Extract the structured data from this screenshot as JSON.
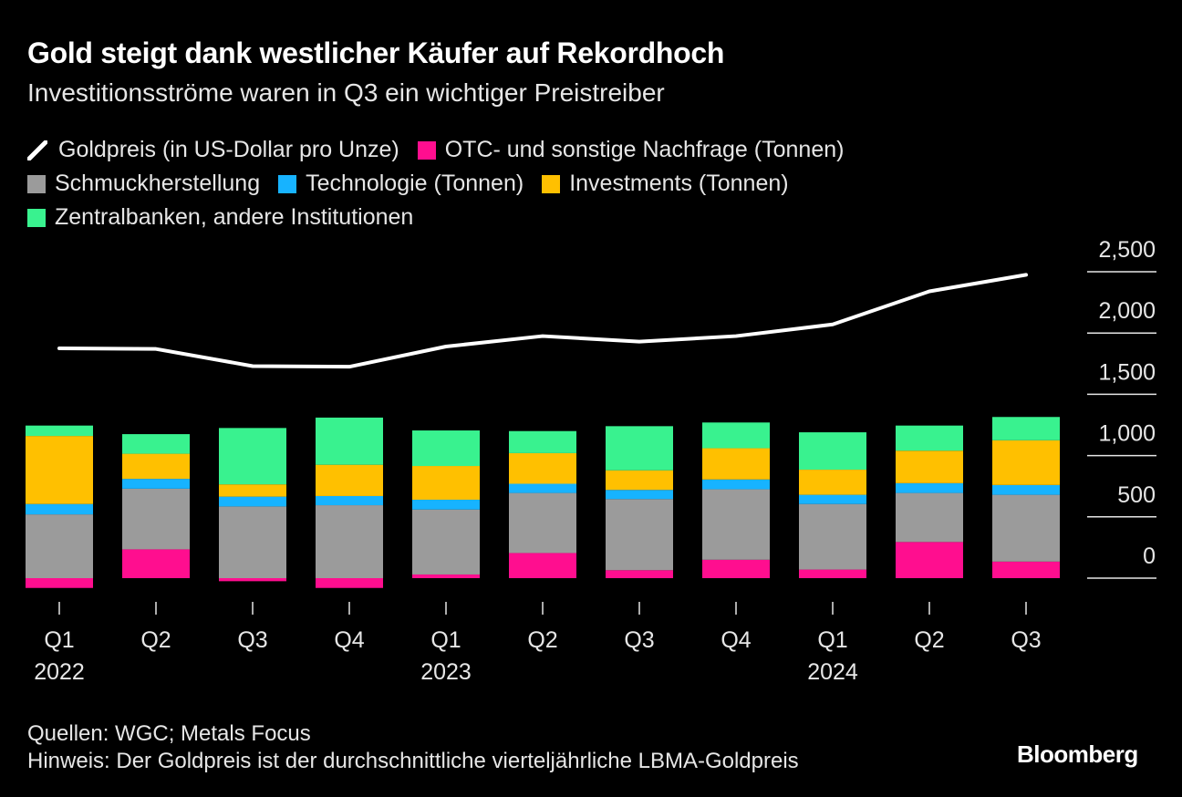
{
  "title": "Gold steigt dank westlicher Käufer auf Rekordhoch",
  "subtitle": "Investitionsströme waren in Q3 ein wichtiger Preistreiber",
  "legend": [
    {
      "key": "goldpreis",
      "label": "Goldpreis (in US-Dollar pro Unze)",
      "color": "#ffffff",
      "shape": "line"
    },
    {
      "key": "otc",
      "label": "OTC- und sonstige Nachfrage (Tonnen)",
      "color": "#ff0e8f",
      "shape": "square"
    },
    {
      "key": "schmuck",
      "label": "Schmuckherstellung",
      "color": "#9b9b9b",
      "shape": "square"
    },
    {
      "key": "technologie",
      "label": "Technologie (Tonnen)",
      "color": "#17b3ff",
      "shape": "square"
    },
    {
      "key": "investments",
      "label": "Investments (Tonnen)",
      "color": "#ffc000",
      "shape": "square"
    },
    {
      "key": "zentralbanken",
      "label": "Zentralbanken, andere Institutionen",
      "color": "#39f28f",
      "shape": "square"
    }
  ],
  "sources": "Quellen: WGC; Metals Focus",
  "note": "Hinweis: Der Goldpreis ist der durchschnittliche vierteljährliche LBMA-Goldpreis",
  "brand": "Bloomberg",
  "chart_data": {
    "type": "stacked-bar-with-line",
    "categories": [
      "Q1",
      "Q2",
      "Q3",
      "Q4",
      "Q1",
      "Q2",
      "Q3",
      "Q4",
      "Q1",
      "Q2",
      "Q3"
    ],
    "year_labels": [
      {
        "index": 0,
        "label": "2022"
      },
      {
        "index": 4,
        "label": "2023"
      },
      {
        "index": 8,
        "label": "2024"
      }
    ],
    "yaxis": {
      "ticks": [
        "0",
        "500",
        "1,000",
        "1,500",
        "2,000",
        "2,500"
      ],
      "tick_values": [
        0,
        500,
        1000,
        1500,
        2000,
        2500
      ],
      "ylim": [
        -120,
        2500
      ],
      "position": "right",
      "grid": false
    },
    "series": [
      {
        "key": "otc",
        "name": "OTC- und sonstige Nachfrage (Tonnen)",
        "color": "#ff0e8f",
        "values": [
          -80,
          235,
          -25,
          -80,
          30,
          205,
          65,
          150,
          70,
          295,
          135
        ]
      },
      {
        "key": "schmuck",
        "name": "Schmuckherstellung",
        "color": "#9b9b9b",
        "values": [
          520,
          495,
          585,
          595,
          530,
          490,
          580,
          575,
          535,
          400,
          545
        ]
      },
      {
        "key": "technologie",
        "name": "Technologie (Tonnen)",
        "color": "#17b3ff",
        "values": [
          85,
          80,
          80,
          75,
          80,
          75,
          75,
          80,
          75,
          80,
          80
        ]
      },
      {
        "key": "investments",
        "name": "Investments (Tonnen)",
        "color": "#ffc000",
        "values": [
          555,
          205,
          100,
          255,
          275,
          250,
          160,
          255,
          205,
          265,
          365
        ]
      },
      {
        "key": "zentralbanken",
        "name": "Zentralbanken, andere Institutionen",
        "color": "#39f28f",
        "values": [
          85,
          160,
          460,
          385,
          290,
          180,
          360,
          210,
          305,
          205,
          190
        ]
      }
    ],
    "line": {
      "key": "goldpreis",
      "name": "Goldpreis (in US-Dollar pro Unze)",
      "color": "#ffffff",
      "values": [
        1875,
        1870,
        1730,
        1725,
        1890,
        1975,
        1930,
        1975,
        2070,
        2340,
        2475
      ]
    }
  }
}
